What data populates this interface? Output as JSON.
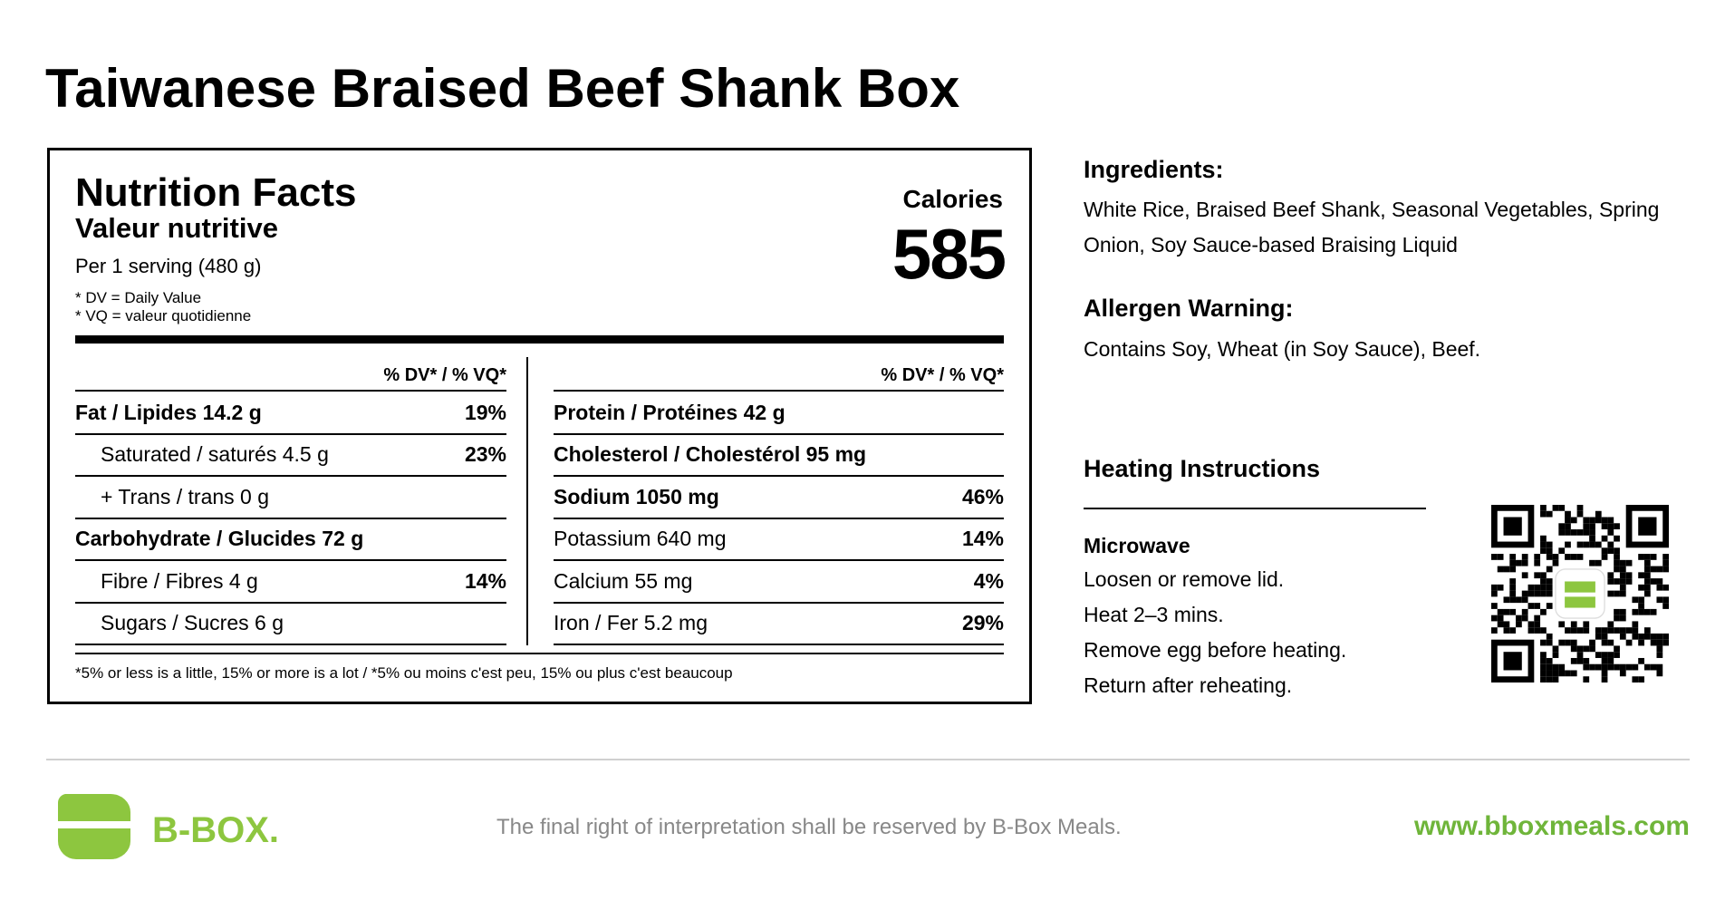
{
  "header": {
    "title": "Taiwanese Braised Beef Shank Box"
  },
  "nutrition": {
    "heading": "Nutrition Facts",
    "subheading": "Valeur nutritive",
    "serving": "Per 1 serving (480 g)",
    "notes": [
      "* DV = Daily Value",
      "* VQ = valeur quotidienne"
    ],
    "calories_label": "Calories",
    "calories": "585",
    "dv_header": "% DV* / % VQ*",
    "left_rows": [
      {
        "label": "Fat / Lipides 14.2 g",
        "dv": "19%"
      },
      {
        "label": "Saturated / saturés 4.5 g",
        "dv": "23%"
      },
      {
        "label": "+ Trans / trans 0 g"
      },
      {
        "label": "Carbohydrate / Glucides 72 g"
      },
      {
        "label": "Fibre / Fibres 4 g",
        "dv": "14%"
      },
      {
        "label": "Sugars / Sucres 6 g"
      }
    ],
    "right_rows": [
      {
        "label": "Protein / Protéines 42 g"
      },
      {
        "label": "Cholesterol / Cholestérol 95 mg"
      },
      {
        "label": "Sodium 1050 mg",
        "dv": "46%"
      },
      {
        "label": "Potassium 640 mg",
        "dv": "14%"
      },
      {
        "label": "Calcium 55 mg",
        "dv": "4%"
      },
      {
        "label": "Iron / Fer 5.2 mg",
        "dv": "29%"
      }
    ],
    "footnote": "*5% or less is a little, 15% or more is a lot / *5% ou moins c'est peu, 15% ou plus c'est beaucoup"
  },
  "ingredients": {
    "heading": "Ingredients:",
    "text": "White Rice, Braised Beef Shank, Seasonal Vegetables, Spring Onion, Soy Sauce-based Braising Liquid"
  },
  "allergens": {
    "heading": "Allergen Warning:",
    "text": "Contains Soy, Wheat (in Soy Sauce), Beef."
  },
  "heating": {
    "heading": "Heating Instructions",
    "method": "Microwave",
    "steps": [
      "Loosen or remove lid.",
      "Heat 2–3 mins.",
      "Remove egg before heating.",
      "Return after reheating."
    ]
  },
  "footer": {
    "brand": "B-BOX.",
    "disclaimer": "The final right of interpretation shall be reserved by B-Box Meals.",
    "url": "www.bboxmeals.com"
  }
}
